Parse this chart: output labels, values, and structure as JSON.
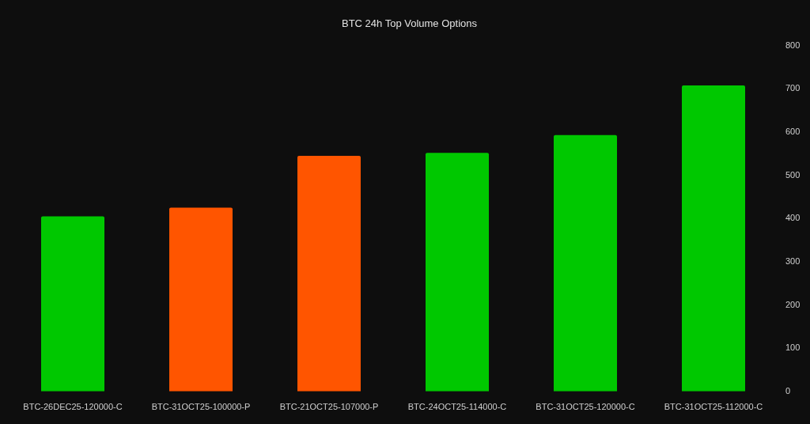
{
  "chart_data": {
    "type": "bar",
    "title": "BTC 24h Top Volume Options",
    "categories": [
      "BTC-26DEC25-120000-C",
      "BTC-31OCT25-100000-P",
      "BTC-21OCT25-107000-P",
      "BTC-24OCT25-114000-C",
      "BTC-31OCT25-120000-C",
      "BTC-31OCT25-112000-C"
    ],
    "values": [
      405,
      425,
      545,
      552,
      593,
      708
    ],
    "colors": [
      "#00c800",
      "#ff5500",
      "#ff5500",
      "#00c800",
      "#00c800",
      "#00c800"
    ],
    "ylim": [
      0,
      800
    ],
    "yticks": [
      0,
      100,
      200,
      300,
      400,
      500,
      600,
      700,
      800
    ]
  }
}
